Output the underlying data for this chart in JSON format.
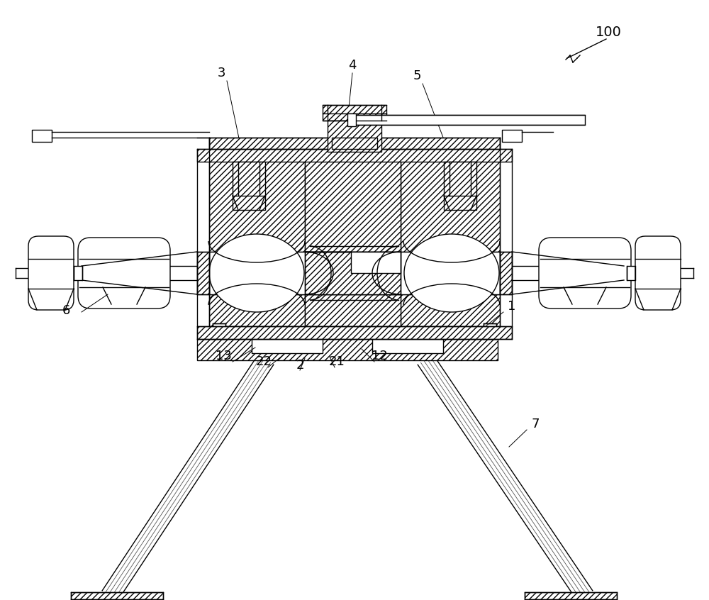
{
  "bg_color": "#ffffff",
  "lc": "#000000",
  "lw": 1.0,
  "hatch": "////",
  "fig_w": 10.0,
  "fig_h": 8.46,
  "dpi": 100
}
